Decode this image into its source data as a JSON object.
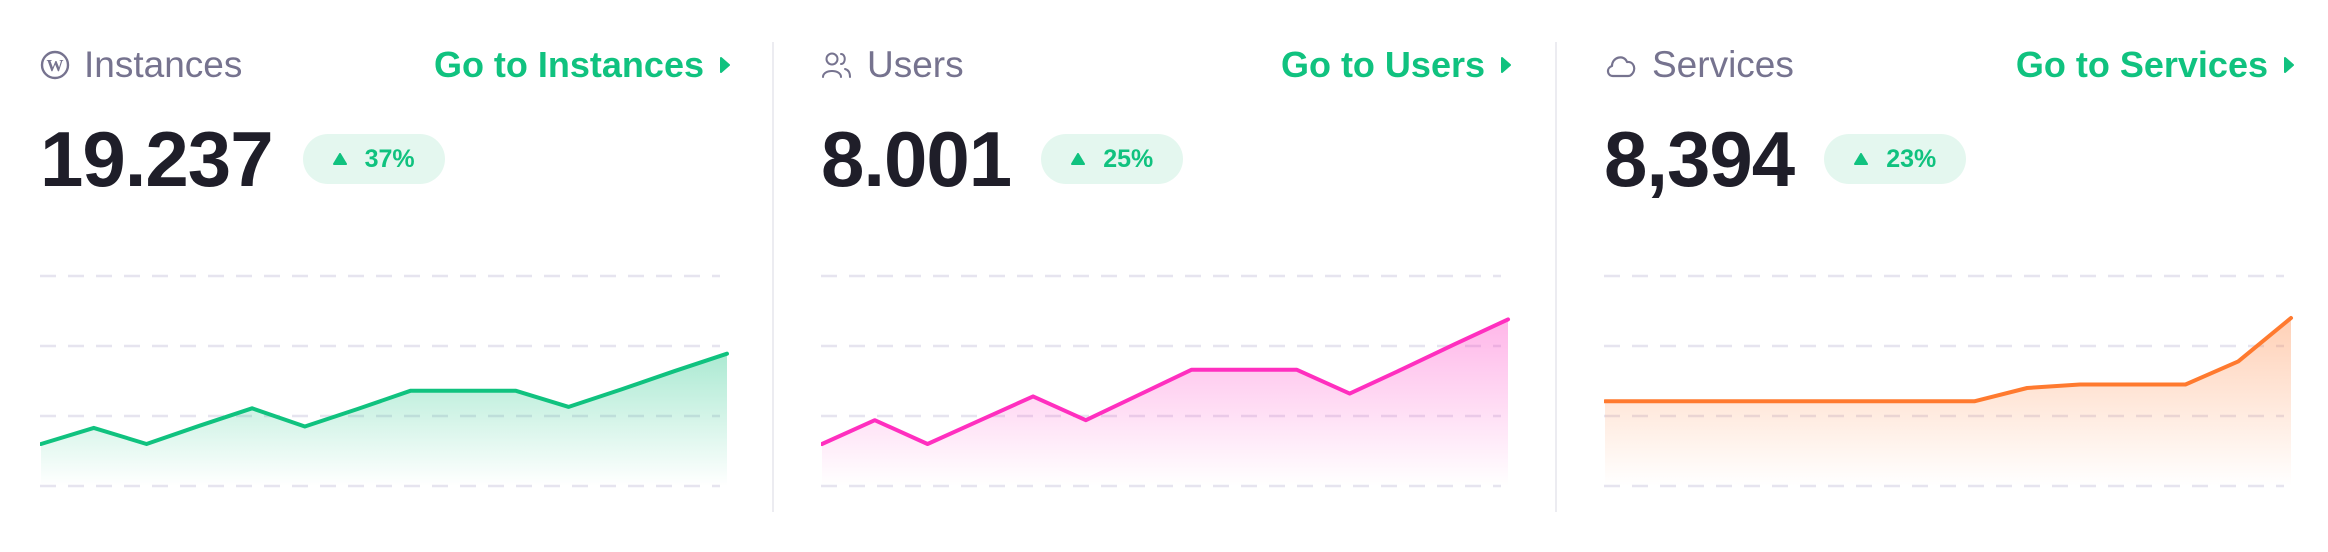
{
  "cards": [
    {
      "title": "Instances",
      "icon": "wordpress-icon",
      "link_label": "Go to Instances",
      "value": "19.237",
      "change": "37%",
      "trend": "up",
      "color": "#10c27f"
    },
    {
      "title": "Users",
      "icon": "users-icon",
      "link_label": "Go to Users",
      "value": "8.001",
      "change": "25%",
      "trend": "up",
      "color": "#ff2fbf"
    },
    {
      "title": "Services",
      "icon": "cloud-icon",
      "link_label": "Go to Services",
      "value": "8,394",
      "change": "23%",
      "trend": "up",
      "color": "#ff7a2f"
    }
  ],
  "colors": {
    "accent": "#10c27f",
    "badge_bg": "#e4f7ef",
    "title": "#76738f",
    "value": "#1f1e29",
    "grid": "#e6e4ef"
  },
  "chart_data": [
    {
      "type": "area",
      "grid": true,
      "ylim": [
        0,
        3
      ],
      "x": [
        1,
        2,
        3,
        4,
        5,
        6,
        7,
        8,
        9,
        10,
        11,
        12,
        13,
        14
      ],
      "series": [
        {
          "values": [
            0.6,
            0.83,
            0.6,
            0.86,
            1.11,
            0.85,
            1.1,
            1.36,
            1.36,
            1.36,
            1.13,
            1.38,
            1.64,
            1.89
          ]
        }
      ]
    },
    {
      "type": "area",
      "grid": true,
      "ylim": [
        0,
        3
      ],
      "x": [
        1,
        2,
        3,
        4,
        5,
        6,
        7,
        8,
        9,
        10,
        11,
        12,
        13,
        14
      ],
      "series": [
        {
          "values": [
            0.6,
            0.94,
            0.6,
            0.94,
            1.28,
            0.94,
            1.3,
            1.66,
            1.66,
            1.66,
            1.32,
            1.67,
            2.03,
            2.38
          ]
        }
      ]
    },
    {
      "type": "area",
      "grid": true,
      "ylim": [
        0,
        3
      ],
      "x": [
        1,
        2,
        3,
        4,
        5,
        6,
        7,
        8,
        9,
        10,
        11,
        12,
        13,
        14
      ],
      "series": [
        {
          "values": [
            1.21,
            1.21,
            1.21,
            1.21,
            1.21,
            1.21,
            1.21,
            1.21,
            1.4,
            1.45,
            1.45,
            1.45,
            1.78,
            2.4
          ]
        }
      ]
    }
  ]
}
